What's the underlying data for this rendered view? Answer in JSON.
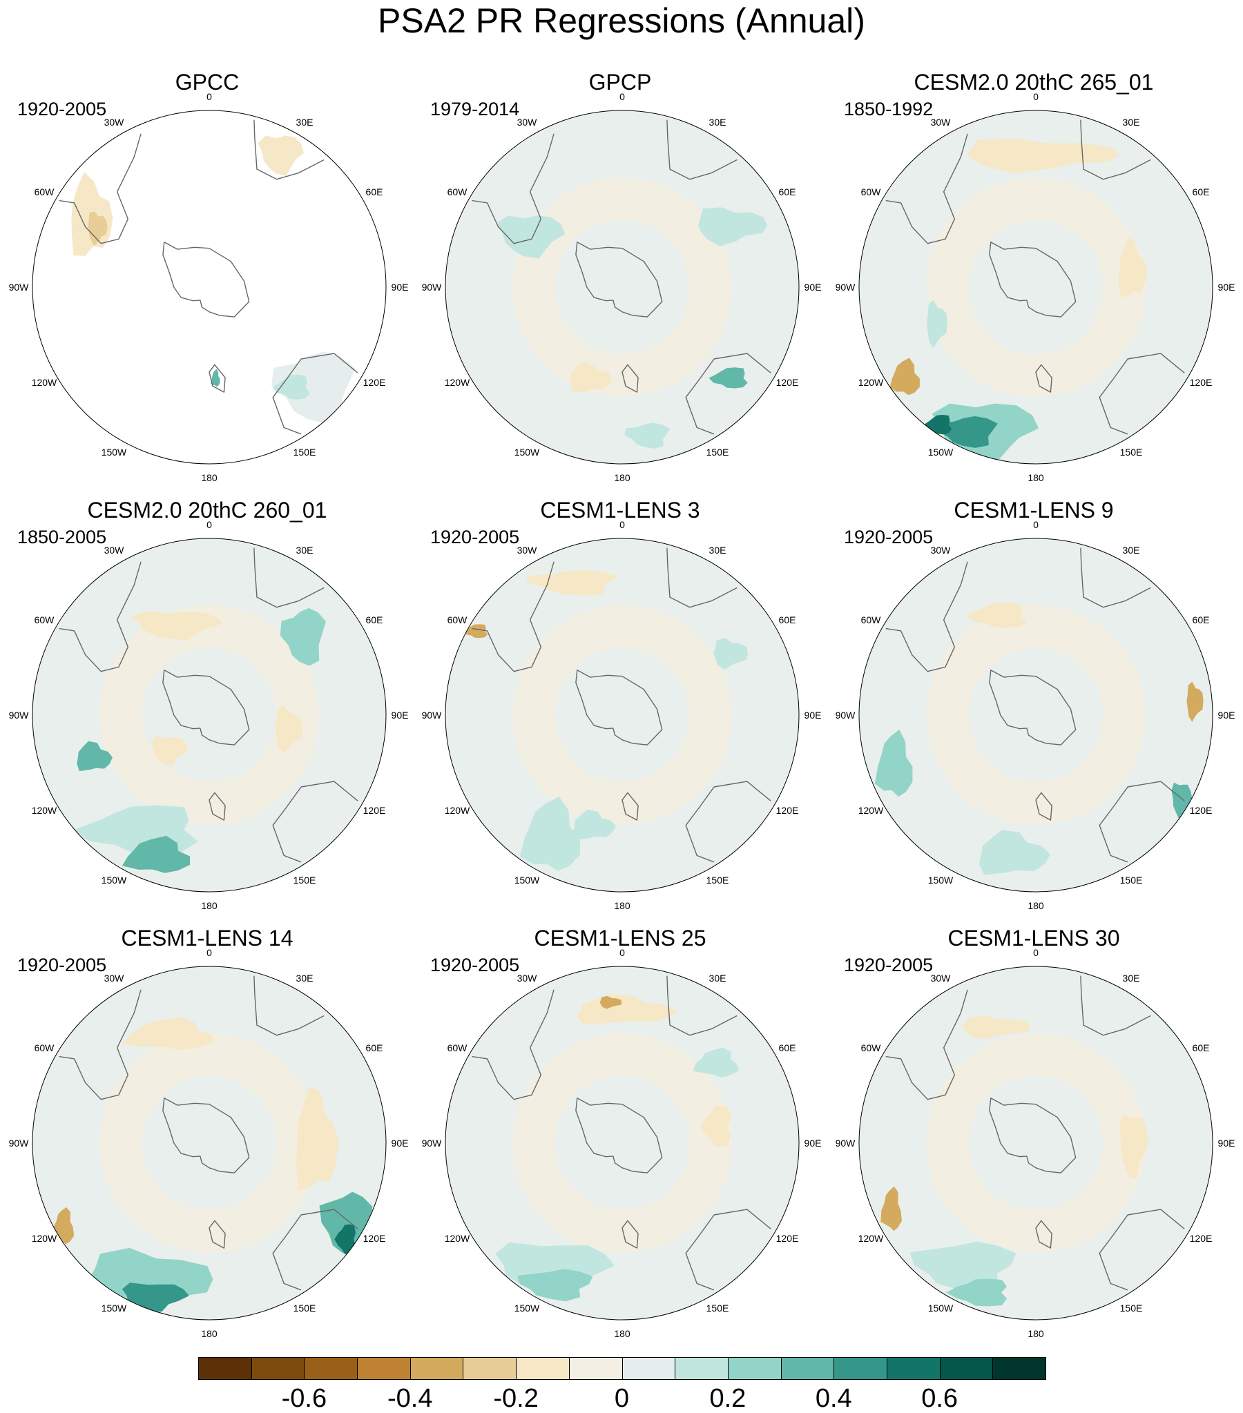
{
  "title": "PSA2 PR Regressions (Annual)",
  "lon_labels": [
    "0",
    "30E",
    "60E",
    "90E",
    "120E",
    "150E",
    "180",
    "150W",
    "120W",
    "90W",
    "60W",
    "30W"
  ],
  "panels": [
    {
      "title": "GPCC",
      "period": "1920-2005"
    },
    {
      "title": "GPCP",
      "period": "1979-2014"
    },
    {
      "title": "CESM2.0 20thC 265_01",
      "period": "1850-1992"
    },
    {
      "title": "CESM2.0 20thC 260_01",
      "period": "1850-2005"
    },
    {
      "title": "CESM1-LENS 3",
      "period": "1920-2005"
    },
    {
      "title": "CESM1-LENS 9",
      "period": "1920-2005"
    },
    {
      "title": "CESM1-LENS 14",
      "period": "1920-2005"
    },
    {
      "title": "CESM1-LENS 25",
      "period": "1920-2005"
    },
    {
      "title": "CESM1-LENS 30",
      "period": "1920-2005"
    }
  ],
  "colorbar": {
    "colors": [
      "#5c3107",
      "#7d4a0e",
      "#9a5f18",
      "#bf8233",
      "#d4aa5e",
      "#e8ce96",
      "#f6e7c6",
      "#f4efe4",
      "#e5eeed",
      "#c1e6df",
      "#93d4c8",
      "#62b8a8",
      "#35968a",
      "#137568",
      "#04574a",
      "#01362d"
    ],
    "labels": [
      "-0.6",
      "-0.4",
      "-0.2",
      "0",
      "0.2",
      "0.4",
      "0.6"
    ]
  },
  "colors": {
    "ocean_neutral": "#e9efec",
    "ocean_dry": "#f3eee2",
    "coast": "#666666",
    "frame": "#000000"
  }
}
